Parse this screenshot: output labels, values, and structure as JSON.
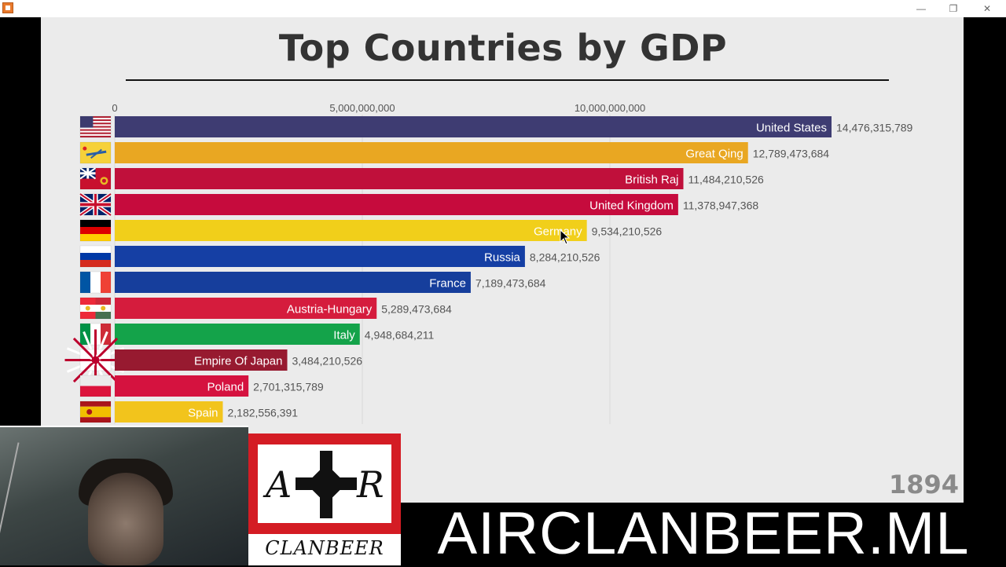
{
  "window": {
    "minimize_label": "—",
    "restore_label": "❐",
    "close_label": "✕"
  },
  "chart_data": {
    "type": "bar",
    "orientation": "horizontal",
    "title": "Top Countries by GDP",
    "year": "1894",
    "x_ticks": [
      0,
      5000000000,
      10000000000
    ],
    "x_tick_labels": [
      "0",
      "5,000,000,000",
      "10,000,000,000"
    ],
    "categories": [
      "United States",
      "Great Qing",
      "British Raj",
      "United Kingdom",
      "Germany",
      "Russia",
      "France",
      "Austria-Hungary",
      "Italy",
      "Empire Of Japan",
      "Poland",
      "Spain"
    ],
    "values": [
      14476315789,
      12789473684,
      11484210526,
      11378947368,
      9534210526,
      8284210526,
      7189473684,
      5289473684,
      4948684211,
      3484210526,
      2701315789,
      2182556391
    ],
    "value_labels": [
      "14,476,315,789",
      "12,789,473,684",
      "11,484,210,526",
      "11,378,947,368",
      "9,534,210,526",
      "8,284,210,526",
      "7,189,473,684",
      "5,289,473,684",
      "4,948,684,211",
      "3,484,210,526",
      "2,701,315,789",
      "2,182,556,391"
    ],
    "colors": [
      "#3e3c72",
      "#e9a722",
      "#c0103b",
      "#c60b3d",
      "#f1cf1a",
      "#153fa4",
      "#163e9c",
      "#d51c3d",
      "#14a34a",
      "#971a30",
      "#d5123f",
      "#f2c41c"
    ],
    "flags": [
      "us-flag",
      "qing-flag",
      "british-raj-flag",
      "uk-flag",
      "germany-flag",
      "russia-flag",
      "france-flag",
      "austria-hungary-flag",
      "italy-flag",
      "japan-flag",
      "poland-flag",
      "spain-flag"
    ]
  },
  "overlay": {
    "logo_letters": [
      "A",
      "R"
    ],
    "logo_text": "CLANBEER",
    "banner_text": "AIRCLANBEER.ML"
  }
}
